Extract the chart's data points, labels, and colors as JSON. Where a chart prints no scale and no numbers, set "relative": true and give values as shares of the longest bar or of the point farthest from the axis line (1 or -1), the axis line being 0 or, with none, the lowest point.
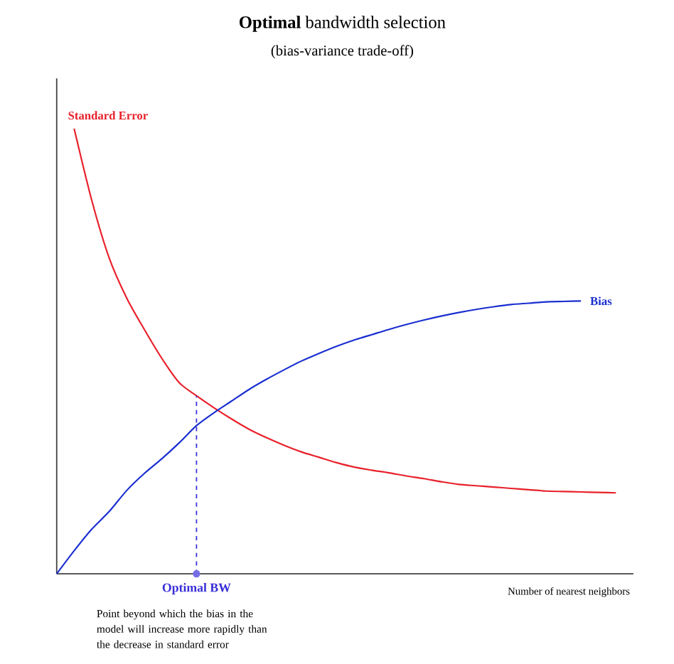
{
  "chart_data": {
    "type": "line",
    "title": "**Optimal** bandwidth selection",
    "subtitle": "(bias-variance trade-off)",
    "xlabel": "Number of nearest neighbors",
    "relative": true,
    "categories": [
      null,
      null,
      null,
      null,
      null,
      null,
      null,
      null,
      null,
      null,
      null,
      null,
      null,
      null,
      null,
      null,
      null,
      null,
      null,
      null,
      null,
      null,
      null,
      null,
      null,
      null,
      null,
      null,
      null,
      null,
      null,
      null,
      null,
      null
    ],
    "series": [
      {
        "name": "Standard Error",
        "color": "#e8202a",
        "values": [
          null,
          1.0,
          0.84,
          0.71,
          0.62,
          0.55,
          0.485,
          0.43,
          0.4,
          0.373,
          0.348,
          0.325,
          0.306,
          0.289,
          0.274,
          0.262,
          0.25,
          0.24,
          0.233,
          0.227,
          0.22,
          0.214,
          0.207,
          0.201,
          0.198,
          0.195,
          0.192,
          0.189,
          0.186,
          0.185,
          0.184,
          0.183,
          0.182,
          null
        ]
      },
      {
        "name": "Bias",
        "color": "#1a2fd0",
        "values": [
          0,
          0.052,
          0.1,
          0.14,
          0.187,
          0.225,
          0.258,
          0.294,
          0.333,
          0.362,
          0.388,
          0.414,
          0.437,
          0.458,
          0.478,
          0.495,
          0.511,
          0.525,
          0.537,
          0.549,
          0.56,
          0.57,
          0.579,
          0.587,
          0.594,
          0.6,
          0.605,
          0.608,
          0.611,
          0.612,
          0.613,
          null,
          null,
          null
        ]
      }
    ],
    "annotations": [
      "Optimal BW",
      "Point beyond which the bias in the model will increase more rapidly than the decrease in standard error"
    ]
  }
}
